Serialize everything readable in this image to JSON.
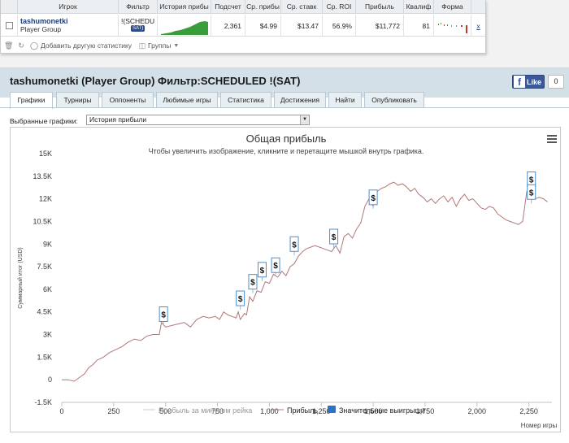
{
  "stats_table": {
    "headers": [
      "Игрок",
      "Фильтр",
      "История прибы",
      "Подсчет",
      "Ср. прибы",
      "Ср. ставк",
      "Ср. ROI",
      "Прибыль",
      "Квалиф",
      "Форма"
    ],
    "row": {
      "player_name": "tashumonetki",
      "player_group": "Player Group",
      "filter": "!(SCHEDU",
      "filter_badge": "SAT)",
      "count": "2,361",
      "avg_profit": "$4.99",
      "avg_stake": "$13.47",
      "avg_roi": "56.9%",
      "profit": "$11,772",
      "qualified": "81",
      "remove": "x"
    },
    "footer": {
      "add_stats": "Добавить другую статистику",
      "groups": "Группы"
    }
  },
  "page_title": "tashumonetki (Player Group) Фильтр:SCHEDULED !(SAT)",
  "facebook": {
    "like_label": "Like",
    "count": "0"
  },
  "tabs": [
    "Графики",
    "Турниры",
    "Оппоненты",
    "Любимые игры",
    "Статистика",
    "Достижения",
    "Найти",
    "Опубликовать"
  ],
  "active_tab": "Графики",
  "graph_select": {
    "label": "Выбранные графики:",
    "value": "История прибыли"
  },
  "chart_data": {
    "type": "line",
    "title": "Общая прибыль",
    "subtitle": "Чтобы увеличить изображение, кликните и перетащите мышкой внутрь графика.",
    "ylabel": "Суммарный итог (USD)",
    "xlabel": "Номер игры",
    "ylim": [
      -1500,
      15000
    ],
    "xlim": [
      0,
      2361
    ],
    "y_ticks": [
      "-1.5K",
      "0",
      "1.5K",
      "3K",
      "4.5K",
      "6K",
      "7.5K",
      "9K",
      "10.5K",
      "12K",
      "13.5K",
      "15K"
    ],
    "y_tick_values": [
      -1500,
      0,
      1500,
      3000,
      4500,
      6000,
      7500,
      9000,
      10500,
      12000,
      13500,
      15000
    ],
    "x_ticks": [
      "0",
      "250",
      "500",
      "750",
      "1,000",
      "1,250",
      "1,500",
      "1,750",
      "2,000",
      "2,250"
    ],
    "x_tick_values": [
      0,
      250,
      500,
      750,
      1000,
      1250,
      1500,
      1750,
      2000,
      2250
    ],
    "legend": [
      "Прибыль за минусом рейка",
      "Прибыль",
      "Значительные выигрыши"
    ],
    "colors": {
      "profit": "#b07777",
      "rake": "#cccccc",
      "big_win": "#2f72c4"
    },
    "series": [
      {
        "name": "Прибыль",
        "x": [
          0,
          30,
          60,
          90,
          110,
          130,
          150,
          170,
          200,
          230,
          260,
          290,
          320,
          350,
          380,
          410,
          440,
          470,
          480,
          500,
          530,
          560,
          590,
          620,
          650,
          680,
          710,
          740,
          760,
          780,
          800,
          820,
          840,
          850,
          860,
          880,
          890,
          905,
          920,
          940,
          960,
          980,
          1000,
          1020,
          1040,
          1060,
          1080,
          1100,
          1120,
          1140,
          1160,
          1180,
          1200,
          1220,
          1240,
          1260,
          1280,
          1300,
          1320,
          1340,
          1360,
          1380,
          1400,
          1420,
          1440,
          1460,
          1480,
          1500,
          1520,
          1540,
          1560,
          1580,
          1600,
          1620,
          1640,
          1660,
          1680,
          1700,
          1720,
          1740,
          1760,
          1780,
          1800,
          1820,
          1840,
          1860,
          1880,
          1900,
          1920,
          1940,
          1960,
          1980,
          2000,
          2020,
          2040,
          2060,
          2080,
          2100,
          2120,
          2140,
          2160,
          2180,
          2200,
          2220,
          2240,
          2260,
          2280,
          2300,
          2320,
          2340
        ],
        "y": [
          0,
          0,
          -100,
          200,
          400,
          800,
          1000,
          1300,
          1500,
          1800,
          2000,
          2200,
          2500,
          2700,
          2600,
          2900,
          3000,
          3000,
          3800,
          3500,
          3600,
          3700,
          3800,
          3500,
          4000,
          4200,
          4100,
          4200,
          4000,
          4500,
          4300,
          4200,
          4100,
          4500,
          4000,
          4400,
          4300,
          5500,
          5200,
          5900,
          5800,
          6500,
          6400,
          7000,
          6800,
          7200,
          6900,
          7500,
          7700,
          8200,
          8500,
          8700,
          8800,
          8900,
          8800,
          8700,
          8600,
          8500,
          8900,
          8400,
          9500,
          9700,
          9400,
          10000,
          10400,
          11500,
          12000,
          11500,
          12500,
          12700,
          12800,
          13000,
          13100,
          12900,
          13000,
          12800,
          12500,
          12700,
          12300,
          12100,
          11800,
          12000,
          11700,
          12000,
          12200,
          11800,
          12100,
          11500,
          12000,
          12300,
          11900,
          12000,
          11700,
          11400,
          11300,
          11500,
          11400,
          11000,
          10800,
          10600,
          10500,
          10400,
          10300,
          10500,
          12500,
          12300,
          12000,
          12100,
          12000,
          11800
        ]
      }
    ],
    "big_wins": [
      {
        "x": 490,
        "y": 4350
      },
      {
        "x": 860,
        "y": 5400
      },
      {
        "x": 920,
        "y": 6500
      },
      {
        "x": 965,
        "y": 7300
      },
      {
        "x": 1030,
        "y": 7600
      },
      {
        "x": 1120,
        "y": 9000
      },
      {
        "x": 1310,
        "y": 9500
      },
      {
        "x": 1500,
        "y": 12100
      },
      {
        "x": 2262,
        "y": 13300
      },
      {
        "x": 2262,
        "y": 12450
      }
    ],
    "big_win_symbol": "$",
    "grid": false,
    "legend_position": "bottom"
  }
}
